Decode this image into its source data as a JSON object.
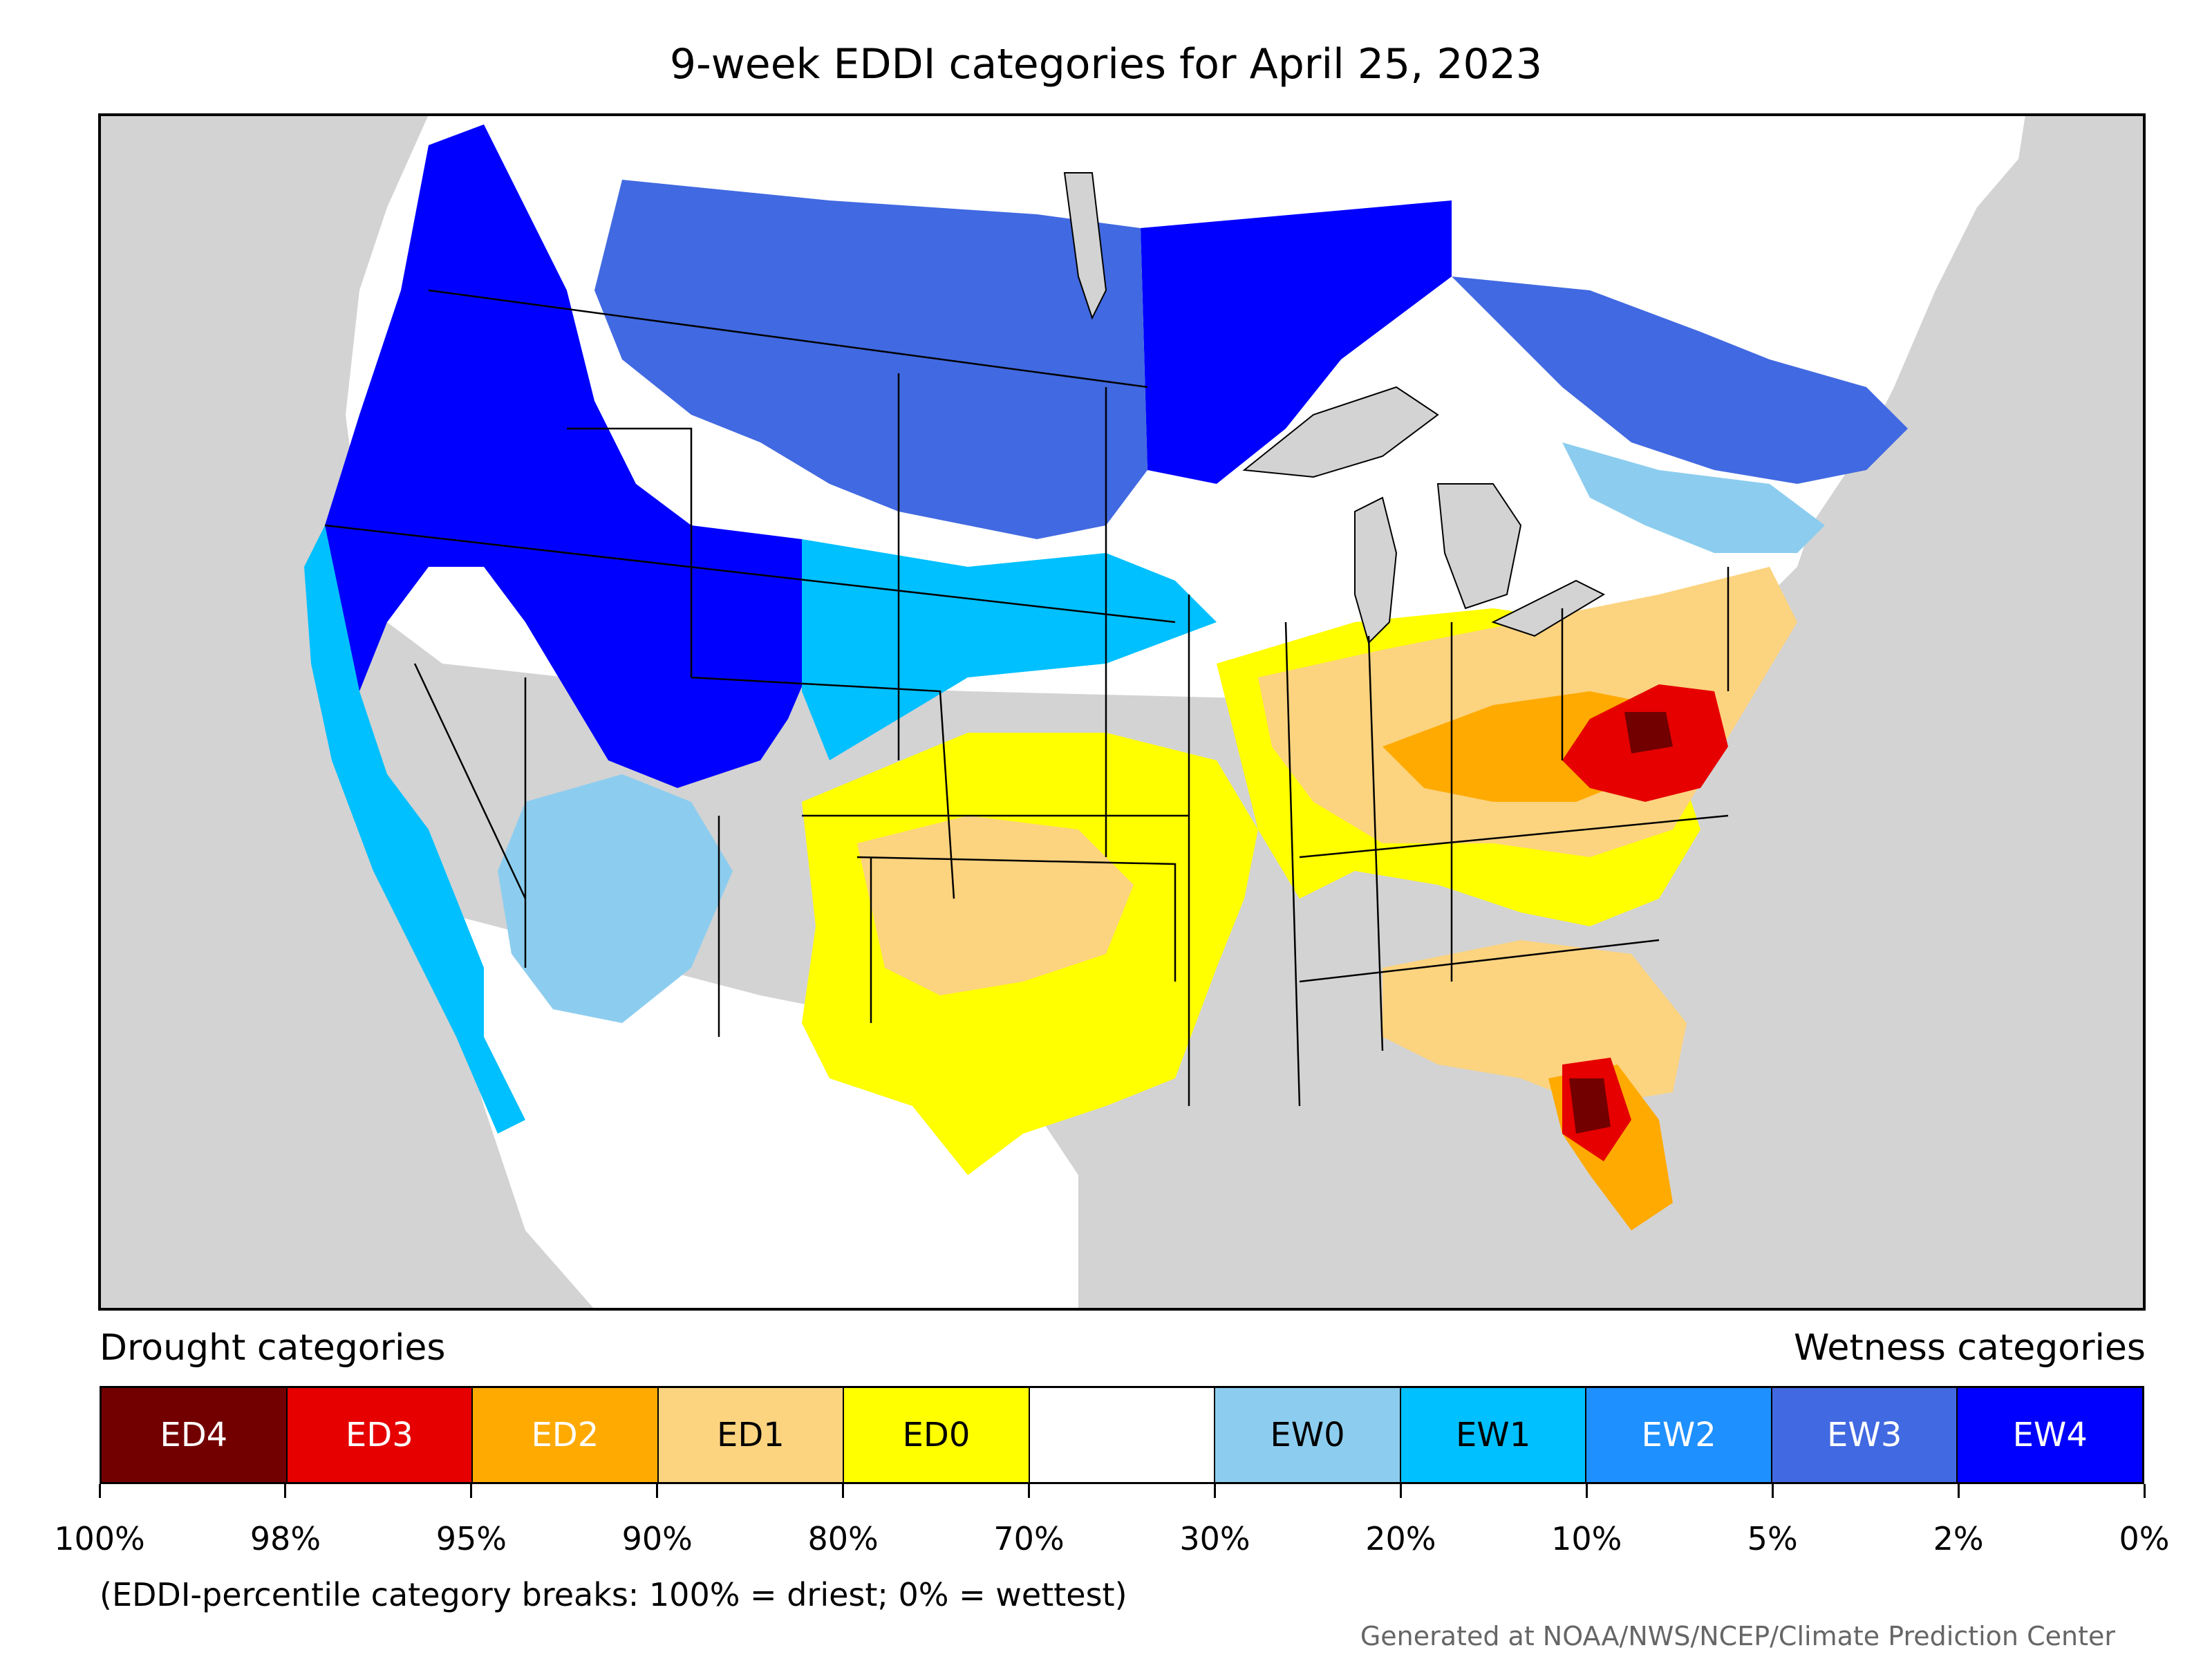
{
  "title": "9-week EDDI categories for April 25, 2023",
  "legend": {
    "drought_heading": "Drought categories",
    "wetness_heading": "Wetness categories",
    "categories": [
      {
        "label": "ED4",
        "color": "#730000",
        "text_color": "#ffffff"
      },
      {
        "label": "ED3",
        "color": "#e60000",
        "text_color": "#ffffff"
      },
      {
        "label": "ED2",
        "color": "#ffaa00",
        "text_color": "#ffffff"
      },
      {
        "label": "ED1",
        "color": "#fcd37f",
        "text_color": "#000000"
      },
      {
        "label": "ED0",
        "color": "#ffff00",
        "text_color": "#000000"
      },
      {
        "label": "",
        "color": "#ffffff",
        "text_color": "#000000"
      },
      {
        "label": "EW0",
        "color": "#8ccdef",
        "text_color": "#000000"
      },
      {
        "label": "EW1",
        "color": "#00c0ff",
        "text_color": "#000000"
      },
      {
        "label": "EW2",
        "color": "#1e90ff",
        "text_color": "#ffffff"
      },
      {
        "label": "EW3",
        "color": "#4169e1",
        "text_color": "#ffffff"
      },
      {
        "label": "EW4",
        "color": "#0000ff",
        "text_color": "#ffffff"
      }
    ],
    "tick_labels": [
      "100%",
      "98%",
      "95%",
      "90%",
      "80%",
      "70%",
      "30%",
      "20%",
      "10%",
      "5%",
      "2%",
      "0%"
    ]
  },
  "note": "(EDDI-percentile category breaks: 100% = driest; 0% = wettest)",
  "credit": "Generated at NOAA/NWS/NCEP/Climate Prediction Center",
  "colors": {
    "ocean": "#d3d3d3",
    "land_outside": "#ffffff",
    "border": "#000000"
  }
}
